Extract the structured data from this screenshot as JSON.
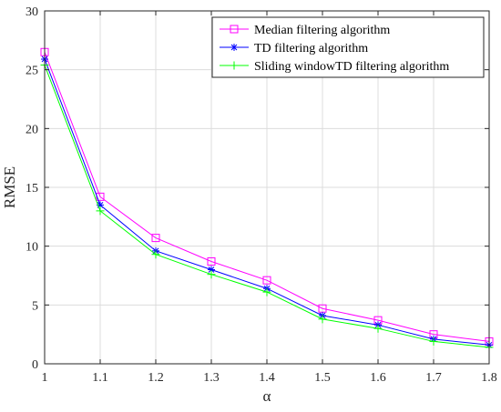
{
  "chart_data": {
    "type": "line",
    "title": "",
    "xlabel": "α",
    "ylabel": "RMSE",
    "x": [
      1,
      1.1,
      1.2,
      1.3,
      1.4,
      1.5,
      1.6,
      1.7,
      1.8
    ],
    "xlim": [
      1,
      1.8
    ],
    "ylim": [
      0,
      30
    ],
    "xticks": [
      "1",
      "1.1",
      "1.2",
      "1.3",
      "1.4",
      "1.5",
      "1.6",
      "1.7",
      "1.8"
    ],
    "yticks": [
      "0",
      "5",
      "10",
      "15",
      "20",
      "25",
      "30"
    ],
    "grid": true,
    "legend_position": "top-right",
    "series": [
      {
        "name": "Median filtering algorithm",
        "color": "#ff00ff",
        "marker": "square",
        "values": [
          26.5,
          14.2,
          10.7,
          8.7,
          7.1,
          4.7,
          3.7,
          2.5,
          1.9
        ]
      },
      {
        "name": "TD filtering algorithm",
        "color": "#0000ff",
        "marker": "asterisk",
        "values": [
          25.9,
          13.5,
          9.6,
          8.0,
          6.4,
          4.1,
          3.3,
          2.1,
          1.6
        ]
      },
      {
        "name": "Sliding windowTD filtering algorithm",
        "color": "#00ff00",
        "marker": "plus",
        "values": [
          25.4,
          13.0,
          9.3,
          7.6,
          6.1,
          3.8,
          3.0,
          1.9,
          1.4
        ]
      }
    ]
  }
}
